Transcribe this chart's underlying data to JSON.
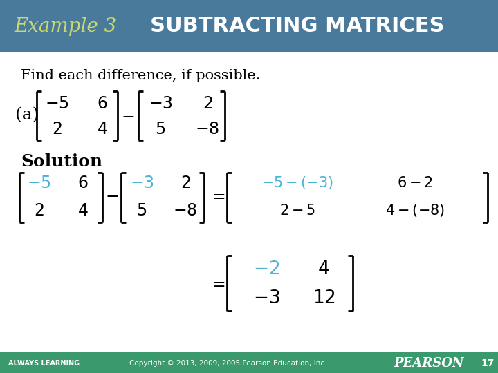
{
  "title_example": "Example 3",
  "title_main": "SUBTRACTING MATRICES",
  "header_bg": "#4a7a9b",
  "header_text_color_example": "#c8d96f",
  "header_text_color_main": "#ffffff",
  "body_bg": "#ffffff",
  "body_text_color": "#000000",
  "blue_color": "#4ab3d4",
  "find_text": "Find each difference, if possible.",
  "footer_left": "ALWAYS LEARNING",
  "footer_copyright": "Copyright © 2013, 2009, 2005 Pearson Education, Inc.",
  "footer_pearson": "PEARSON",
  "footer_page": "17",
  "footer_bg": "#3a9a6e",
  "footer_text_color": "#ffffff"
}
